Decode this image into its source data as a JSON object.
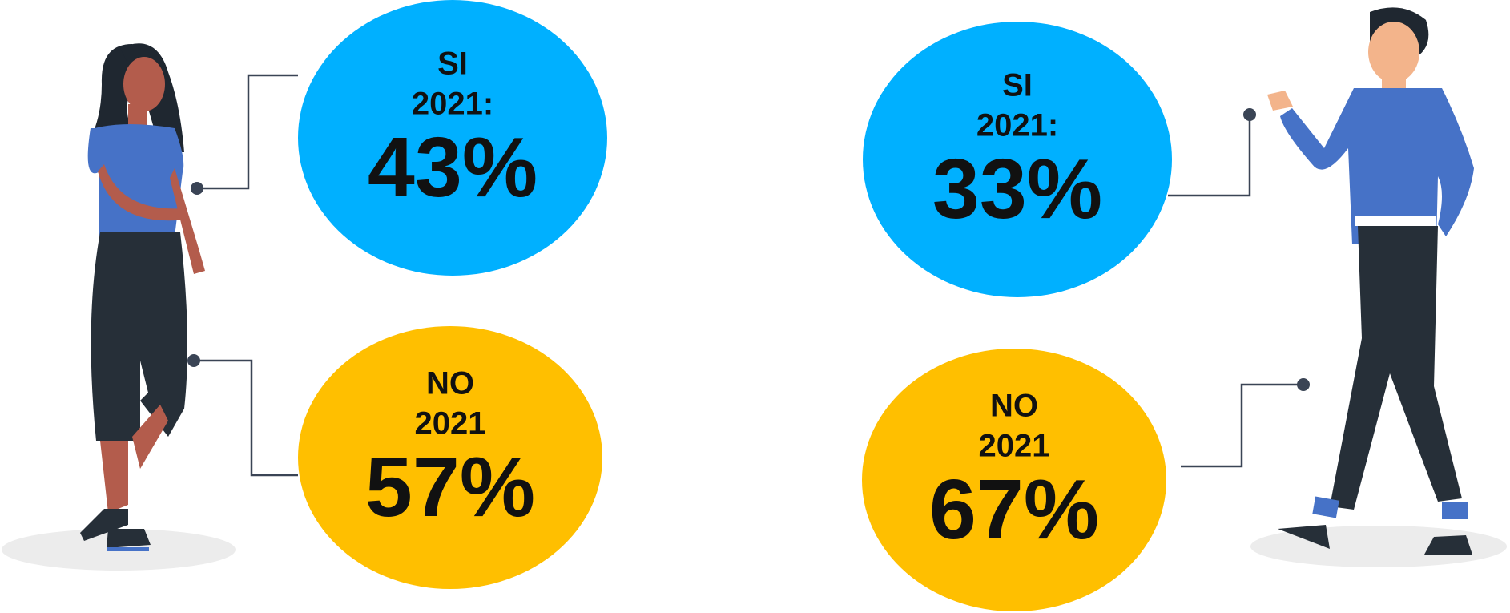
{
  "panels": [
    {
      "bubbles": [
        {
          "label": "SI",
          "year": "2021:",
          "percent": "43%"
        },
        {
          "label": "NO",
          "year": "2021",
          "percent": "57%"
        }
      ]
    },
    {
      "bubbles": [
        {
          "label": "SI",
          "year": "2021:",
          "percent": "33%"
        },
        {
          "label": "NO",
          "year": "2021",
          "percent": "67%"
        }
      ]
    }
  ]
}
